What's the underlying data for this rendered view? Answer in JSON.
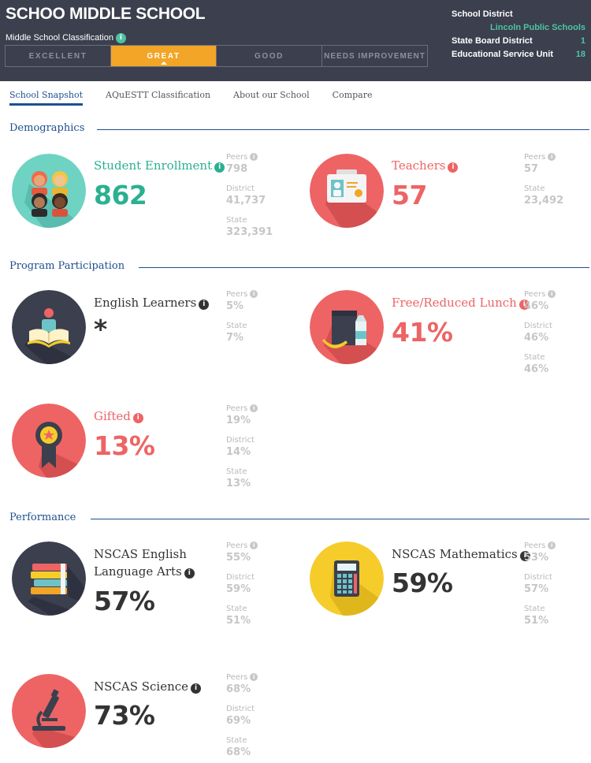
{
  "header": {
    "school_name": "SCHOO MIDDLE SCHOOL",
    "classification_label": "Middle School Classification",
    "classifications": [
      "EXCELLENT",
      "GREAT",
      "GOOD",
      "NEEDS IMPROVEMENT"
    ],
    "active_classification": "GREAT",
    "district": {
      "district_label": "School District",
      "district_value": "Lincoln Public Schools",
      "board_label": "State Board District",
      "board_value": "1",
      "esu_label": "Educational Service Unit",
      "esu_value": "18"
    }
  },
  "tabs": [
    "School Snapshot",
    "AQuESTT Classification",
    "About our School",
    "Compare"
  ],
  "active_tab": "School Snapshot",
  "sections": {
    "demographics": "Demographics",
    "program": "Program Participation",
    "performance": "Performance"
  },
  "stat_labels": {
    "peers": "Peers",
    "district": "District",
    "state": "State"
  },
  "metrics": {
    "enrollment": {
      "label": "Student Enrollment",
      "value": "862",
      "peers": "798",
      "district": "41,737",
      "state": "323,391"
    },
    "teachers": {
      "label": "Teachers",
      "value": "57",
      "peers": "57",
      "state": "23,492"
    },
    "english_learners": {
      "label": "English Learners",
      "value": "*",
      "peers": "5%",
      "state": "7%"
    },
    "free_lunch": {
      "label": "Free/Reduced Lunch",
      "value": "41%",
      "peers": "46%",
      "district": "46%",
      "state": "46%"
    },
    "gifted": {
      "label": "Gifted",
      "value": "13%",
      "peers": "19%",
      "district": "14%",
      "state": "13%"
    },
    "ela": {
      "label_line1": "NSCAS English",
      "label_line2": "Language Arts",
      "value": "57%",
      "peers": "55%",
      "district": "59%",
      "state": "51%"
    },
    "math": {
      "label": "NSCAS Mathematics",
      "value": "59%",
      "peers": "53%",
      "district": "57%",
      "state": "51%"
    },
    "science": {
      "label": "NSCAS Science",
      "value": "73%",
      "peers": "68%",
      "district": "69%",
      "state": "68%"
    }
  },
  "icons": {
    "enrollment": "students-icon",
    "teachers": "id-badge-icon",
    "english_learners": "reading-book-icon",
    "free_lunch": "lunch-bag-icon",
    "gifted": "award-ribbon-icon",
    "ela": "book-stack-icon",
    "math": "calculator-icon",
    "science": "microscope-icon"
  },
  "colors": {
    "header_bg": "#3b3f4e",
    "accent_orange": "#f2a526",
    "teal": "#2bb091",
    "coral": "#ee6464",
    "navy": "#1e4f8c",
    "dark_circle": "#3b3f4e",
    "yellow_circle": "#f5cc2a"
  }
}
